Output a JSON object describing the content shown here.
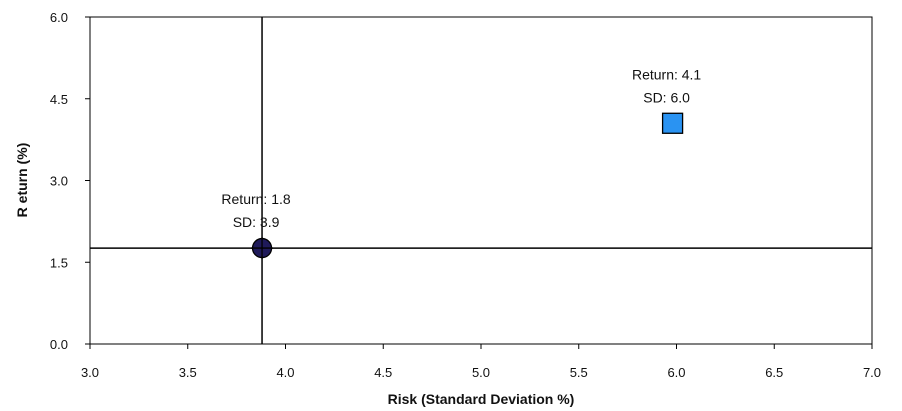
{
  "chart_data": {
    "type": "scatter",
    "title": "",
    "xlabel": "Risk (Standard Deviation %)",
    "ylabel": "R eturn  (%)",
    "xlim": [
      3.0,
      7.0
    ],
    "ylim": [
      0.0,
      6.0
    ],
    "x_ticks": [
      "3.0",
      "3.5",
      "4.0",
      "4.5",
      "5.0",
      "5.5",
      "6.0",
      "6.5",
      "7.0"
    ],
    "y_ticks": [
      "0.0",
      "1.5",
      "3.0",
      "4.5",
      "6.0"
    ],
    "grid": false,
    "crosshair": {
      "x": 3.88,
      "y": 1.76
    },
    "points": [
      {
        "x": 3.88,
        "y": 1.76,
        "marker": "circle",
        "color": "#1f1a5a",
        "label_line1": "Return: 1.8",
        "label_line2": "SD: 3.9"
      },
      {
        "x": 5.98,
        "y": 4.05,
        "marker": "square",
        "color": "#2a93f2",
        "label_line1": "Return: 4.1",
        "label_line2": "SD: 6.0"
      }
    ]
  }
}
